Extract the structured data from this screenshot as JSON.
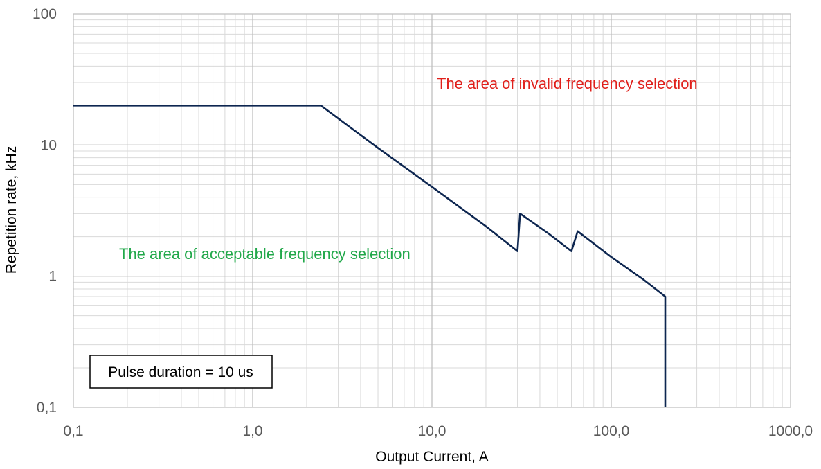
{
  "chart_data": {
    "type": "line",
    "xscale": "log",
    "yscale": "log",
    "xlim": [
      0.1,
      1000
    ],
    "ylim": [
      0.1,
      100
    ],
    "xlabel": "Output Current, A",
    "ylabel": "Repetition rate, kHz",
    "xticks": [
      "0,1",
      "1,0",
      "10,0",
      "100,0",
      "1000,0"
    ],
    "yticks": [
      "0,1",
      "1",
      "10",
      "100"
    ],
    "grid": true,
    "series": [
      {
        "color": "#0d2650",
        "points": [
          [
            0.1,
            20
          ],
          [
            2.4,
            20
          ],
          [
            5,
            9.5
          ],
          [
            10,
            4.8
          ],
          [
            20,
            2.4
          ],
          [
            30,
            1.55
          ],
          [
            31,
            3.0
          ],
          [
            45,
            2.1
          ],
          [
            60,
            1.55
          ],
          [
            65,
            2.2
          ],
          [
            100,
            1.4
          ],
          [
            150,
            0.95
          ],
          [
            200,
            0.7
          ],
          [
            200,
            0.1
          ]
        ]
      }
    ],
    "annotations": [
      {
        "text": "The area of invalid frequency selection",
        "color": "#e0201b",
        "position": "upper-right"
      },
      {
        "text": "The area of acceptable frequency selection",
        "color": "#21a84a",
        "position": "middle-left"
      },
      {
        "text": "Pulse duration = 10 us",
        "color": "#000000",
        "position": "lower-left",
        "boxed": true
      }
    ]
  }
}
